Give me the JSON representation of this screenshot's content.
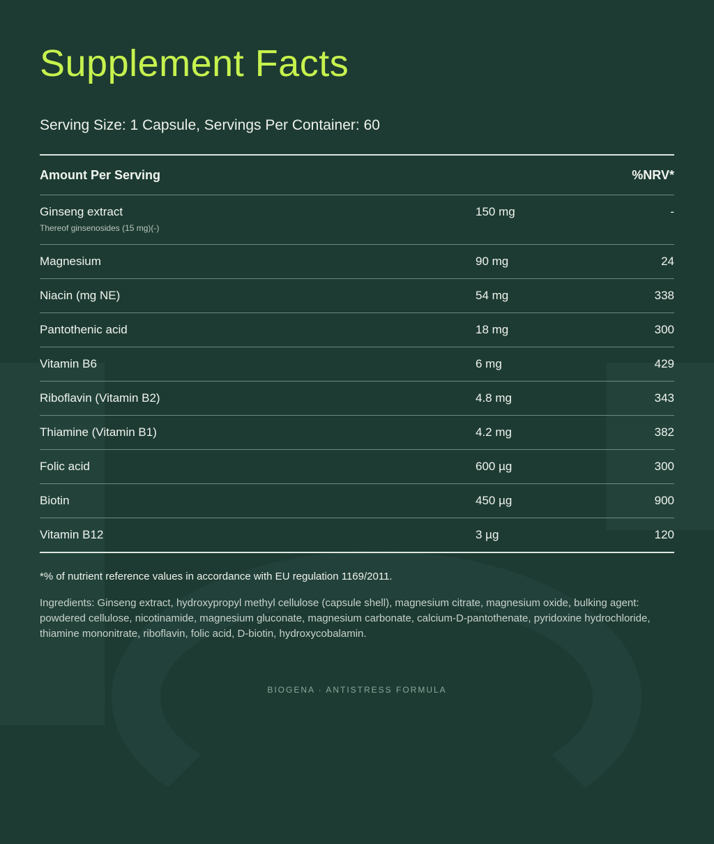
{
  "title": "Supplement Facts",
  "serving": "Serving Size: 1 Capsule, Servings Per Container: 60",
  "table": {
    "header_left": "Amount Per Serving",
    "header_right": "%NRV*",
    "rows": [
      {
        "name": "Ginseng extract",
        "sub": "Thereof ginsenosides (15 mg)(-)",
        "amount": "150 mg",
        "nrv": "-"
      },
      {
        "name": "Magnesium",
        "amount": "90 mg",
        "nrv": "24"
      },
      {
        "name": "Niacin (mg NE)",
        "amount": "54 mg",
        "nrv": "338"
      },
      {
        "name": "Pantothenic acid",
        "amount": "18 mg",
        "nrv": "300"
      },
      {
        "name": "Vitamin B6",
        "amount": "6 mg",
        "nrv": "429"
      },
      {
        "name": "Riboflavin (Vitamin B2)",
        "amount": "4.8 mg",
        "nrv": "343"
      },
      {
        "name": "Thiamine (Vitamin B1)",
        "amount": "4.2 mg",
        "nrv": "382"
      },
      {
        "name": "Folic acid",
        "amount": "600 µg",
        "nrv": "300"
      },
      {
        "name": "Biotin",
        "amount": "450 µg",
        "nrv": "900"
      },
      {
        "name": "Vitamin B12",
        "amount": "3 µg",
        "nrv": "120"
      }
    ]
  },
  "footnote": "*% of nutrient reference values in accordance with EU regulation 1169/2011.",
  "ingredients": "Ingredients: Ginseng extract, hydroxypropyl methyl cellulose (capsule shell), magnesium citrate, magnesium oxide, bulking agent: powdered cellulose, nicotinamide, magnesium gluconate, magnesium carbonate, calcium-D-pantothenate, pyridoxine hydrochloride, thiamine mononitrate, riboflavin, folic acid, D-biotin, hydroxycobalamin.",
  "brand": "BIOGENA · ANTISTRESS FORMULA",
  "colors": {
    "background": "#1d3b32",
    "title": "#c6f24e"
  }
}
